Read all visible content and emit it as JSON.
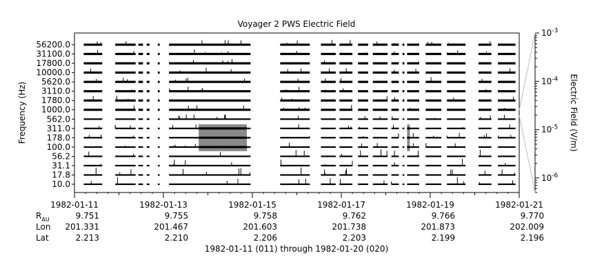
{
  "chart_data": {
    "type": "heatmap",
    "title": "Voyager 2 PWS Electric Field",
    "ylabel": "Frequency (Hz)",
    "colorbar_label": "Electric Field (V/m)",
    "y_ticks": [
      "56200.0",
      "31100.0",
      "17800.0",
      "10000.0",
      "5620.0",
      "3110.0",
      "1780.0",
      "1000.0",
      "562.0",
      "311.0",
      "178.0",
      "100.0",
      "56.2",
      "31.1",
      "17.8",
      "10.0"
    ],
    "colorbar_ticks": [
      {
        "base": "10",
        "exp": "-3",
        "value": 0.001
      },
      {
        "base": "10",
        "exp": "-4",
        "value": 0.0001
      },
      {
        "base": "10",
        "exp": "-5",
        "value": 1e-05
      },
      {
        "base": "10",
        "exp": "-6",
        "value": 1e-06
      }
    ],
    "colorbar_range": [
      5e-07,
      0.001
    ],
    "colorbar_scale": "log",
    "x_range": [
      "1982-01-11",
      "1982-01-21"
    ],
    "x_ticks": [
      "1982-01-11",
      "1982-01-13",
      "1982-01-15",
      "1982-01-17",
      "1982-01-19",
      "1982-01-21"
    ],
    "ephemeris": [
      {
        "label": "R",
        "sub": "AU",
        "values": [
          "9.751",
          "9.755",
          "9.758",
          "9.762",
          "9.766",
          "9.770"
        ]
      },
      {
        "label": "Lon",
        "sub": "",
        "values": [
          "201.331",
          "201.467",
          "201.603",
          "201.738",
          "201.873",
          "202.009"
        ]
      },
      {
        "label": "Lat",
        "sub": "",
        "values": [
          "2.213",
          "2.210",
          "2.206",
          "2.203",
          "2.199",
          "2.196"
        ]
      }
    ],
    "xlabel": "1982-01-11 (011) through 1982-01-20 (020)",
    "data_segments": [
      [
        "1982-01-11T05:00",
        "1982-01-11T15:00"
      ],
      [
        "1982-01-11T22:00",
        "1982-01-12T09:00"
      ],
      [
        "1982-01-12T10:30",
        "1982-01-12T13:00"
      ],
      [
        "1982-01-12T15:00",
        "1982-01-12T16:30"
      ],
      [
        "1982-01-12T21:00",
        "1982-01-12T22:00"
      ],
      [
        "1982-01-13T03:00",
        "1982-01-14T23:00"
      ],
      [
        "1982-01-15T15:00",
        "1982-01-16T07:00"
      ],
      [
        "1982-01-16T13:00",
        "1982-01-16T21:00"
      ],
      [
        "1982-01-16T23:00",
        "1982-01-17T06:00"
      ],
      [
        "1982-01-17T09:00",
        "1982-01-17T14:30"
      ],
      [
        "1982-01-17T17:00",
        "1982-01-18T01:00"
      ],
      [
        "1982-01-18T03:00",
        "1982-01-18T07:00"
      ],
      [
        "1982-01-18T09:00",
        "1982-01-18T10:00"
      ],
      [
        "1982-01-18T11:30",
        "1982-01-18T18:00"
      ],
      [
        "1982-01-18T21:30",
        "1982-01-19T06:00"
      ],
      [
        "1982-01-19T09:00",
        "1982-01-19T19:00"
      ],
      [
        "1982-01-20T02:00",
        "1982-01-20T09:00"
      ],
      [
        "1982-01-20T12:30",
        "1982-01-20T22:00"
      ]
    ],
    "high_intensity_patches": [
      {
        "x": [
          "1982-01-13T19:00",
          "1982-01-14T21:00"
        ],
        "channels": [
          "311.0",
          "100.0"
        ],
        "level": 1e-05
      },
      {
        "x": [
          "1982-01-18T11:30",
          "1982-01-18T13:00"
        ],
        "channels": [
          "311.0",
          "100.0"
        ],
        "level": 1e-05
      }
    ]
  }
}
